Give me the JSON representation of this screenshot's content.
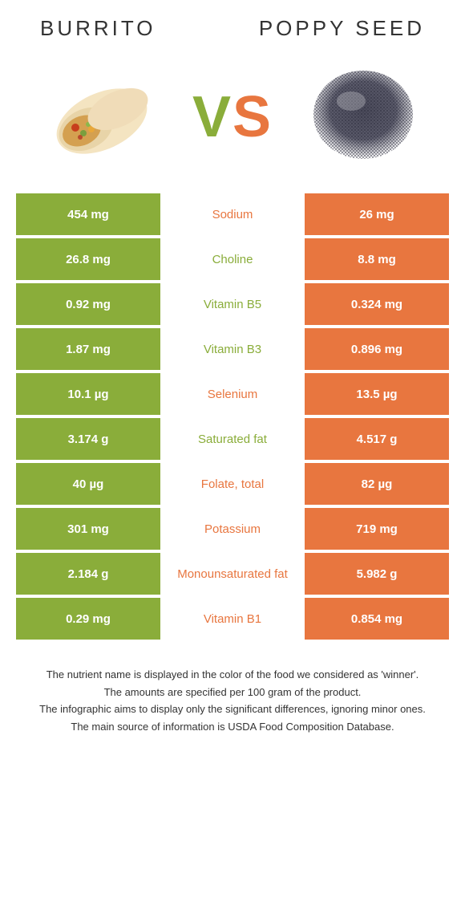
{
  "title_left": "Burrito",
  "title_right": "Poppy seed",
  "vs_v": "V",
  "vs_s": "S",
  "colors": {
    "green": "#8aad3a",
    "orange": "#e8763f",
    "white": "#ffffff",
    "text": "#333333"
  },
  "rows": [
    {
      "left": "454 mg",
      "label": "Sodium",
      "right": "26 mg",
      "winner": "orange"
    },
    {
      "left": "26.8 mg",
      "label": "Choline",
      "right": "8.8 mg",
      "winner": "green"
    },
    {
      "left": "0.92 mg",
      "label": "Vitamin B5",
      "right": "0.324 mg",
      "winner": "green"
    },
    {
      "left": "1.87 mg",
      "label": "Vitamin B3",
      "right": "0.896 mg",
      "winner": "green"
    },
    {
      "left": "10.1 µg",
      "label": "Selenium",
      "right": "13.5 µg",
      "winner": "orange"
    },
    {
      "left": "3.174 g",
      "label": "Saturated fat",
      "right": "4.517 g",
      "winner": "green"
    },
    {
      "left": "40 µg",
      "label": "Folate, total",
      "right": "82 µg",
      "winner": "orange"
    },
    {
      "left": "301 mg",
      "label": "Potassium",
      "right": "719 mg",
      "winner": "orange"
    },
    {
      "left": "2.184 g",
      "label": "Monounsaturated fat",
      "right": "5.982 g",
      "winner": "orange"
    },
    {
      "left": "0.29 mg",
      "label": "Vitamin B1",
      "right": "0.854 mg",
      "winner": "orange"
    }
  ],
  "footer": [
    "The nutrient name is displayed in the color of the food we considered as 'winner'.",
    "The amounts are specified per 100 gram of the product.",
    "The infographic aims to display only the significant differences, ignoring minor ones.",
    "The main source of information is USDA Food Composition Database."
  ]
}
